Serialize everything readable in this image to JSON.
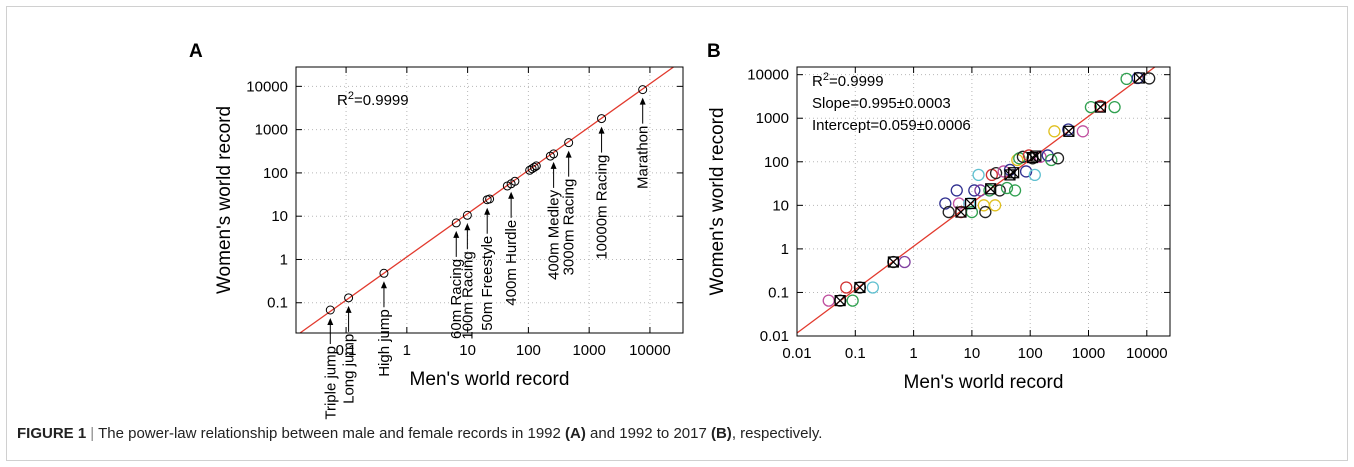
{
  "caption": {
    "label": "FIGURE 1",
    "separator": "|",
    "text_before_a": "The power-law relationship between male and female records in 1992",
    "a_ref": "(A)",
    "text_middle": "and 1992 to 2017",
    "b_ref": "(B)",
    "text_end": ", respectively."
  },
  "colors": {
    "fit_line": "#e23a2e",
    "frame": "#d0d0d0",
    "grid": "#b8b8b8"
  },
  "chart_data": [
    {
      "panel": "A",
      "type": "scatter",
      "xlabel": "Men's world record",
      "ylabel": "Women's world record",
      "xscale": "log",
      "yscale": "log",
      "xlim": [
        0.015,
        35000
      ],
      "ylim": [
        0.02,
        28000
      ],
      "xticks": [
        0.1,
        1,
        10,
        100,
        1000,
        10000
      ],
      "xtick_labels": [
        "0.1",
        "1",
        "10",
        "100",
        "1000",
        "10000"
      ],
      "yticks": [
        0.1,
        1,
        10,
        100,
        1000,
        10000
      ],
      "ytick_labels": [
        "0.1",
        "1",
        "10",
        "100",
        "1000",
        "10000"
      ],
      "grid": true,
      "annotation": "R2=0.9999",
      "fit_line": {
        "slope": 1.0,
        "intercept_log10": 0.059
      },
      "points": [
        {
          "x": 0.055,
          "y": 0.068
        },
        {
          "x": 0.11,
          "y": 0.13
        },
        {
          "x": 0.42,
          "y": 0.48
        },
        {
          "x": 6.5,
          "y": 7.0
        },
        {
          "x": 9.9,
          "y": 10.5
        },
        {
          "x": 21,
          "y": 24
        },
        {
          "x": 23,
          "y": 25
        },
        {
          "x": 45,
          "y": 50
        },
        {
          "x": 52,
          "y": 56
        },
        {
          "x": 60,
          "y": 64
        },
        {
          "x": 105,
          "y": 115
        },
        {
          "x": 115,
          "y": 125
        },
        {
          "x": 125,
          "y": 135
        },
        {
          "x": 135,
          "y": 145
        },
        {
          "x": 230,
          "y": 245
        },
        {
          "x": 260,
          "y": 275
        },
        {
          "x": 460,
          "y": 500
        },
        {
          "x": 1600,
          "y": 1800
        },
        {
          "x": 7600,
          "y": 8400
        }
      ],
      "event_labels": [
        {
          "label": "Triple jump",
          "x": 0.055,
          "y": 0.068
        },
        {
          "label": "Long jump",
          "x": 0.11,
          "y": 0.13
        },
        {
          "label": "High jump",
          "x": 0.42,
          "y": 0.48
        },
        {
          "label": "60m Racing",
          "x": 6.5,
          "y": 7.0
        },
        {
          "label": "100m Racing",
          "x": 9.9,
          "y": 10.5
        },
        {
          "label": "50m Freestyle",
          "x": 21,
          "y": 24
        },
        {
          "label": "400m Hurdle",
          "x": 52,
          "y": 56
        },
        {
          "label": "400m Medley",
          "x": 260,
          "y": 275
        },
        {
          "label": "3000m Racing",
          "x": 460,
          "y": 500
        },
        {
          "label": "10000m Racing",
          "x": 1600,
          "y": 1800
        },
        {
          "label": "Marathon",
          "x": 7600,
          "y": 8400
        }
      ]
    },
    {
      "panel": "B",
      "type": "scatter",
      "xlabel": "Men's world record",
      "ylabel": "Women's world record",
      "xscale": "log",
      "yscale": "log",
      "xlim": [
        0.01,
        25000
      ],
      "ylim": [
        0.01,
        15000
      ],
      "xticks": [
        0.01,
        0.1,
        1,
        10,
        100,
        1000,
        10000
      ],
      "xtick_labels": [
        "0.01",
        "0.1",
        "1",
        "10",
        "100",
        "1000",
        "10000"
      ],
      "yticks": [
        0.01,
        0.1,
        1,
        10,
        100,
        1000,
        10000
      ],
      "ytick_labels": [
        "0.01",
        "0.1",
        "1",
        "10",
        "100",
        "1000",
        "10000"
      ],
      "grid": true,
      "annotations": [
        "R2=0.9999",
        "Slope=0.995±0.0003",
        "Intercept=0.059±0.0006"
      ],
      "fit_line": {
        "slope": 0.995,
        "intercept_log10": 0.059
      },
      "circle_points": [
        {
          "x": 0.035,
          "y": 0.065,
          "color": "#c050a0"
        },
        {
          "x": 0.055,
          "y": 0.065,
          "color": "#222222"
        },
        {
          "x": 0.07,
          "y": 0.13,
          "color": "#d03030"
        },
        {
          "x": 0.09,
          "y": 0.065,
          "color": "#30a050"
        },
        {
          "x": 0.12,
          "y": 0.13,
          "color": "#222222"
        },
        {
          "x": 0.2,
          "y": 0.13,
          "color": "#60c0d0"
        },
        {
          "x": 0.45,
          "y": 0.5,
          "color": "#222222"
        },
        {
          "x": 0.7,
          "y": 0.5,
          "color": "#8040a0"
        },
        {
          "x": 3.5,
          "y": 11,
          "color": "#303090"
        },
        {
          "x": 4,
          "y": 7,
          "color": "#222222"
        },
        {
          "x": 5.5,
          "y": 22,
          "color": "#303090"
        },
        {
          "x": 6,
          "y": 11,
          "color": "#c050a0"
        },
        {
          "x": 6.5,
          "y": 7,
          "color": "#d03030"
        },
        {
          "x": 9,
          "y": 11,
          "color": "#60c0d0"
        },
        {
          "x": 10,
          "y": 7,
          "color": "#30a050"
        },
        {
          "x": 11,
          "y": 22,
          "color": "#303090"
        },
        {
          "x": 13,
          "y": 50,
          "color": "#60c0d0"
        },
        {
          "x": 14,
          "y": 22,
          "color": "#8040a0"
        },
        {
          "x": 16,
          "y": 10,
          "color": "#e0c020"
        },
        {
          "x": 17,
          "y": 7,
          "color": "#222222"
        },
        {
          "x": 20,
          "y": 22,
          "color": "#30a050"
        },
        {
          "x": 22,
          "y": 50,
          "color": "#d03030"
        },
        {
          "x": 25,
          "y": 10,
          "color": "#e0c020"
        },
        {
          "x": 26,
          "y": 55,
          "color": "#222222"
        },
        {
          "x": 30,
          "y": 22,
          "color": "#222222"
        },
        {
          "x": 35,
          "y": 60,
          "color": "#c050a0"
        },
        {
          "x": 40,
          "y": 25,
          "color": "#30a050"
        },
        {
          "x": 45,
          "y": 65,
          "color": "#303090"
        },
        {
          "x": 55,
          "y": 22,
          "color": "#30a050"
        },
        {
          "x": 60,
          "y": 110,
          "color": "#e0c020"
        },
        {
          "x": 65,
          "y": 120,
          "color": "#30a050"
        },
        {
          "x": 75,
          "y": 130,
          "color": "#222222"
        },
        {
          "x": 85,
          "y": 60,
          "color": "#303090"
        },
        {
          "x": 95,
          "y": 140,
          "color": "#d03030"
        },
        {
          "x": 110,
          "y": 120,
          "color": "#222222"
        },
        {
          "x": 120,
          "y": 50,
          "color": "#60c0d0"
        },
        {
          "x": 150,
          "y": 130,
          "color": "#c050a0"
        },
        {
          "x": 200,
          "y": 140,
          "color": "#303090"
        },
        {
          "x": 230,
          "y": 110,
          "color": "#30a050"
        },
        {
          "x": 260,
          "y": 500,
          "color": "#e0c020"
        },
        {
          "x": 300,
          "y": 120,
          "color": "#222222"
        },
        {
          "x": 450,
          "y": 550,
          "color": "#303090"
        },
        {
          "x": 800,
          "y": 500,
          "color": "#c050a0"
        },
        {
          "x": 1100,
          "y": 1800,
          "color": "#30a050"
        },
        {
          "x": 1600,
          "y": 1900,
          "color": "#d03030"
        },
        {
          "x": 2800,
          "y": 1800,
          "color": "#30a050"
        },
        {
          "x": 4500,
          "y": 8000,
          "color": "#30a050"
        },
        {
          "x": 7000,
          "y": 8400,
          "color": "#303090"
        },
        {
          "x": 11000,
          "y": 8200,
          "color": "#222222"
        }
      ],
      "crossed_points": [
        {
          "x": 0.055,
          "y": 0.065
        },
        {
          "x": 0.12,
          "y": 0.13
        },
        {
          "x": 0.45,
          "y": 0.5
        },
        {
          "x": 6.5,
          "y": 7
        },
        {
          "x": 9.5,
          "y": 11
        },
        {
          "x": 21,
          "y": 24
        },
        {
          "x": 45,
          "y": 50
        },
        {
          "x": 52,
          "y": 56
        },
        {
          "x": 110,
          "y": 125
        },
        {
          "x": 125,
          "y": 135
        },
        {
          "x": 460,
          "y": 500
        },
        {
          "x": 1600,
          "y": 1800
        },
        {
          "x": 7500,
          "y": 8400
        }
      ]
    }
  ]
}
